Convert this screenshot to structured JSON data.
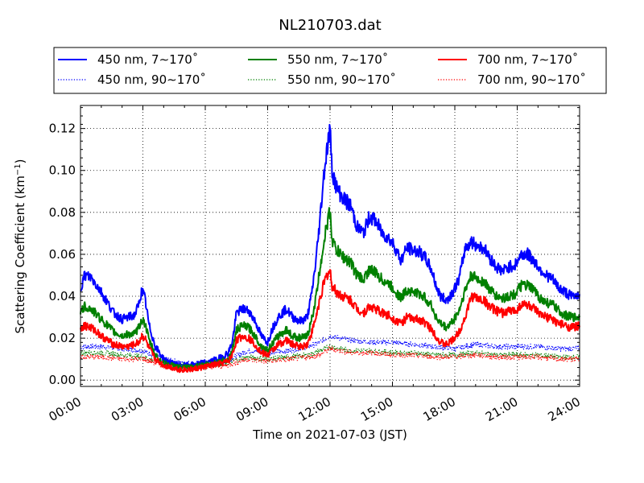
{
  "chart_data": {
    "type": "line",
    "title": "NL210703.dat",
    "xlabel": "Time on 2021-07-03 (JST)",
    "ylabel": "Scattering Coefficient (km",
    "ylabel_sup": "−1",
    "ylabel_close": ")",
    "xlim": [
      0,
      24
    ],
    "ylim": [
      -0.003,
      0.131
    ],
    "x_ticks": [
      0,
      3,
      6,
      9,
      12,
      15,
      18,
      21,
      24
    ],
    "x_tick_labels": [
      "00:00",
      "03:00",
      "06:00",
      "09:00",
      "12:00",
      "15:00",
      "18:00",
      "21:00",
      "24:00"
    ],
    "y_ticks": [
      0.0,
      0.02,
      0.04,
      0.06,
      0.08,
      0.1,
      0.12
    ],
    "y_tick_labels": [
      "0.00",
      "0.02",
      "0.04",
      "0.06",
      "0.08",
      "0.10",
      "0.12"
    ],
    "grid": true,
    "legend_position": "top, above plot",
    "series": [
      {
        "name": "450 nm, 7∼170˚",
        "color": "#0000ff",
        "style": "solid",
        "x": [
          0,
          0.2,
          0.5,
          0.8,
          1.0,
          1.3,
          1.6,
          2.0,
          2.3,
          2.6,
          2.8,
          2.95,
          3.1,
          3.3,
          3.6,
          4.0,
          4.4,
          4.8,
          5.3,
          5.8,
          6.3,
          6.8,
          7.1,
          7.3,
          7.5,
          7.8,
          8.1,
          8.4,
          8.7,
          9.0,
          9.2,
          9.5,
          9.9,
          10.2,
          10.6,
          10.9,
          11.1,
          11.3,
          11.5,
          11.7,
          11.85,
          12.0,
          12.1,
          12.3,
          12.6,
          13.0,
          13.3,
          13.6,
          13.9,
          14.2,
          14.5,
          14.8,
          15.1,
          15.4,
          15.7,
          16.0,
          16.3,
          16.6,
          16.9,
          17.1,
          17.3,
          17.6,
          17.9,
          18.2,
          18.5,
          18.8,
          19.1,
          19.4,
          19.7,
          20.0,
          20.3,
          20.6,
          20.9,
          21.2,
          21.5,
          21.8,
          22.1,
          22.4,
          22.7,
          23.0,
          23.3,
          23.6,
          24.0
        ],
        "values": [
          0.044,
          0.05,
          0.049,
          0.045,
          0.042,
          0.037,
          0.032,
          0.029,
          0.03,
          0.031,
          0.036,
          0.043,
          0.039,
          0.026,
          0.016,
          0.01,
          0.008,
          0.007,
          0.007,
          0.008,
          0.009,
          0.011,
          0.013,
          0.018,
          0.032,
          0.034,
          0.033,
          0.028,
          0.021,
          0.018,
          0.024,
          0.03,
          0.034,
          0.03,
          0.028,
          0.03,
          0.04,
          0.055,
          0.075,
          0.098,
          0.11,
          0.12,
          0.1,
          0.092,
          0.087,
          0.083,
          0.073,
          0.07,
          0.078,
          0.076,
          0.07,
          0.068,
          0.064,
          0.057,
          0.063,
          0.062,
          0.061,
          0.058,
          0.052,
          0.045,
          0.04,
          0.038,
          0.042,
          0.048,
          0.063,
          0.066,
          0.064,
          0.063,
          0.058,
          0.054,
          0.052,
          0.054,
          0.055,
          0.06,
          0.06,
          0.057,
          0.053,
          0.05,
          0.048,
          0.044,
          0.042,
          0.04,
          0.041
        ]
      },
      {
        "name": "550 nm, 7∼170˚",
        "color": "#008000",
        "style": "solid",
        "x": [
          0,
          0.2,
          0.5,
          0.8,
          1.0,
          1.3,
          1.6,
          2.0,
          2.3,
          2.6,
          2.8,
          2.95,
          3.1,
          3.3,
          3.6,
          4.0,
          4.4,
          4.8,
          5.3,
          5.8,
          6.3,
          6.8,
          7.1,
          7.3,
          7.5,
          7.8,
          8.1,
          8.4,
          8.7,
          9.0,
          9.2,
          9.5,
          9.9,
          10.2,
          10.6,
          10.9,
          11.1,
          11.3,
          11.5,
          11.7,
          11.85,
          12.0,
          12.1,
          12.3,
          12.6,
          13.0,
          13.3,
          13.6,
          13.9,
          14.2,
          14.5,
          14.8,
          15.1,
          15.4,
          15.7,
          16.0,
          16.3,
          16.6,
          16.9,
          17.1,
          17.3,
          17.6,
          17.9,
          18.2,
          18.5,
          18.8,
          19.1,
          19.4,
          19.7,
          20.0,
          20.3,
          20.6,
          20.9,
          21.2,
          21.5,
          21.8,
          22.1,
          22.4,
          22.7,
          23.0,
          23.3,
          23.6,
          24.0
        ],
        "values": [
          0.032,
          0.035,
          0.034,
          0.031,
          0.029,
          0.026,
          0.023,
          0.021,
          0.022,
          0.022,
          0.025,
          0.029,
          0.027,
          0.019,
          0.012,
          0.008,
          0.007,
          0.006,
          0.006,
          0.007,
          0.008,
          0.009,
          0.01,
          0.014,
          0.024,
          0.026,
          0.025,
          0.021,
          0.016,
          0.014,
          0.017,
          0.021,
          0.024,
          0.021,
          0.02,
          0.021,
          0.028,
          0.038,
          0.052,
          0.066,
          0.074,
          0.081,
          0.067,
          0.062,
          0.059,
          0.056,
          0.05,
          0.048,
          0.053,
          0.051,
          0.048,
          0.046,
          0.043,
          0.039,
          0.043,
          0.042,
          0.041,
          0.039,
          0.035,
          0.03,
          0.027,
          0.025,
          0.028,
          0.033,
          0.043,
          0.05,
          0.048,
          0.047,
          0.043,
          0.04,
          0.039,
          0.04,
          0.041,
          0.045,
          0.045,
          0.043,
          0.039,
          0.037,
          0.036,
          0.033,
          0.031,
          0.03,
          0.03
        ]
      },
      {
        "name": "700 nm, 7∼170˚",
        "color": "#ff0000",
        "style": "solid",
        "x": [
          0,
          0.2,
          0.5,
          0.8,
          1.0,
          1.3,
          1.6,
          2.0,
          2.3,
          2.6,
          2.8,
          2.95,
          3.1,
          3.3,
          3.6,
          4.0,
          4.4,
          4.8,
          5.3,
          5.8,
          6.3,
          6.8,
          7.1,
          7.3,
          7.5,
          7.8,
          8.1,
          8.4,
          8.7,
          9.0,
          9.2,
          9.5,
          9.9,
          10.2,
          10.6,
          10.9,
          11.1,
          11.3,
          11.5,
          11.7,
          11.85,
          12.0,
          12.1,
          12.3,
          12.6,
          13.0,
          13.3,
          13.6,
          13.9,
          14.2,
          14.5,
          14.8,
          15.1,
          15.4,
          15.7,
          16.0,
          16.3,
          16.6,
          16.9,
          17.1,
          17.3,
          17.6,
          17.9,
          18.2,
          18.5,
          18.8,
          19.1,
          19.4,
          19.7,
          20.0,
          20.3,
          20.6,
          20.9,
          21.2,
          21.5,
          21.8,
          22.1,
          22.4,
          22.7,
          23.0,
          23.3,
          23.6,
          24.0
        ],
        "values": [
          0.025,
          0.026,
          0.025,
          0.023,
          0.021,
          0.019,
          0.017,
          0.016,
          0.016,
          0.017,
          0.018,
          0.021,
          0.02,
          0.015,
          0.01,
          0.007,
          0.006,
          0.005,
          0.005,
          0.006,
          0.007,
          0.008,
          0.009,
          0.012,
          0.019,
          0.021,
          0.02,
          0.017,
          0.013,
          0.012,
          0.014,
          0.017,
          0.019,
          0.017,
          0.016,
          0.017,
          0.022,
          0.029,
          0.038,
          0.046,
          0.05,
          0.052,
          0.045,
          0.042,
          0.04,
          0.038,
          0.034,
          0.032,
          0.035,
          0.034,
          0.032,
          0.031,
          0.029,
          0.027,
          0.03,
          0.029,
          0.029,
          0.027,
          0.024,
          0.021,
          0.018,
          0.017,
          0.019,
          0.023,
          0.03,
          0.04,
          0.039,
          0.038,
          0.035,
          0.033,
          0.032,
          0.033,
          0.033,
          0.036,
          0.036,
          0.034,
          0.031,
          0.03,
          0.029,
          0.027,
          0.026,
          0.025,
          0.026
        ]
      },
      {
        "name": "450 nm, 90∼170˚",
        "color": "#0000ff",
        "style": "dotted",
        "x": [
          0,
          1,
          2,
          3,
          4,
          5,
          6,
          7,
          8,
          9,
          10,
          11,
          11.5,
          12,
          12.5,
          13,
          14,
          15,
          16,
          17,
          18,
          19,
          20,
          21,
          22,
          23,
          24
        ],
        "values": [
          0.016,
          0.016,
          0.015,
          0.014,
          0.01,
          0.008,
          0.008,
          0.009,
          0.014,
          0.013,
          0.014,
          0.016,
          0.018,
          0.021,
          0.02,
          0.019,
          0.018,
          0.018,
          0.017,
          0.016,
          0.015,
          0.017,
          0.016,
          0.016,
          0.016,
          0.015,
          0.015
        ]
      },
      {
        "name": "550 nm, 90∼170˚",
        "color": "#008000",
        "style": "dotted",
        "x": [
          0,
          1,
          2,
          3,
          4,
          5,
          6,
          7,
          8,
          9,
          10,
          11,
          11.5,
          12,
          12.5,
          13,
          14,
          15,
          16,
          17,
          18,
          19,
          20,
          21,
          22,
          23,
          24
        ],
        "values": [
          0.013,
          0.013,
          0.012,
          0.011,
          0.008,
          0.007,
          0.007,
          0.008,
          0.011,
          0.01,
          0.011,
          0.012,
          0.014,
          0.016,
          0.015,
          0.014,
          0.014,
          0.013,
          0.013,
          0.012,
          0.012,
          0.013,
          0.012,
          0.012,
          0.012,
          0.011,
          0.011
        ]
      },
      {
        "name": "700 nm, 90∼170˚",
        "color": "#ff0000",
        "style": "dotted",
        "x": [
          0,
          1,
          2,
          3,
          4,
          5,
          6,
          7,
          8,
          9,
          10,
          11,
          11.5,
          12,
          12.5,
          13,
          14,
          15,
          16,
          17,
          18,
          19,
          20,
          21,
          22,
          23,
          24
        ],
        "values": [
          0.011,
          0.011,
          0.01,
          0.01,
          0.007,
          0.006,
          0.006,
          0.007,
          0.01,
          0.009,
          0.01,
          0.011,
          0.012,
          0.015,
          0.014,
          0.013,
          0.013,
          0.012,
          0.012,
          0.011,
          0.011,
          0.012,
          0.011,
          0.011,
          0.011,
          0.01,
          0.01
        ]
      }
    ]
  },
  "legend_order": [
    0,
    1,
    2,
    3,
    4,
    5
  ]
}
